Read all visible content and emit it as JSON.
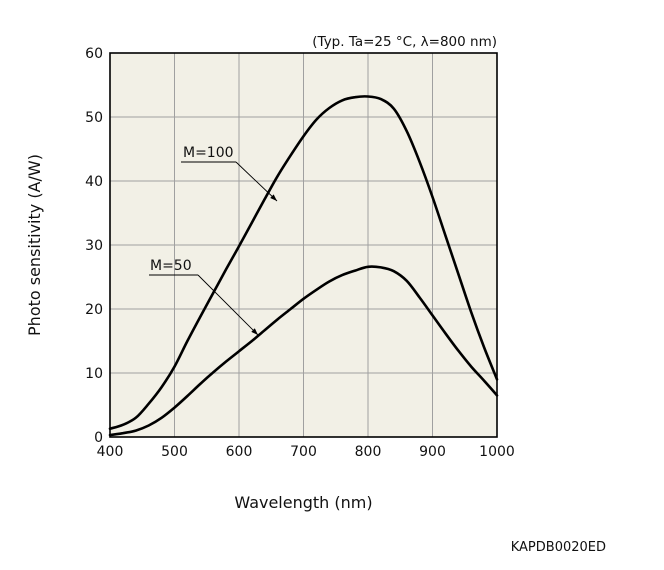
{
  "chart_data": {
    "type": "line",
    "title": "",
    "condition_note": "(Typ. Ta=25 °C, λ=800 nm)",
    "xlabel": "Wavelength (nm)",
    "ylabel": "Photo sensitivity (A/W)",
    "xlim": [
      400,
      1000
    ],
    "ylim": [
      0,
      60
    ],
    "xticks": [
      "400",
      "500",
      "600",
      "700",
      "800",
      "900",
      "1000"
    ],
    "yticks": [
      "0",
      "10",
      "20",
      "30",
      "40",
      "50",
      "60"
    ],
    "grid": true,
    "colors": {
      "plot_background": "#f2f0e6",
      "grid": "#a0a0a0",
      "line": "#000000"
    },
    "series": [
      {
        "name": "M=100",
        "x": [
          400,
          420,
          440,
          460,
          480,
          500,
          520,
          540,
          560,
          580,
          600,
          620,
          640,
          660,
          680,
          700,
          720,
          740,
          760,
          780,
          800,
          820,
          840,
          860,
          880,
          900,
          920,
          940,
          960,
          980,
          1000
        ],
        "y": [
          1.3,
          1.9,
          3.0,
          5.2,
          7.8,
          11.0,
          15.0,
          18.8,
          22.5,
          26.2,
          29.8,
          33.5,
          37.2,
          40.8,
          44.0,
          47.0,
          49.6,
          51.4,
          52.6,
          53.1,
          53.2,
          52.8,
          51.3,
          47.8,
          43.0,
          37.5,
          31.5,
          25.5,
          19.5,
          14.0,
          9.0
        ]
      },
      {
        "name": "M=50",
        "x": [
          400,
          420,
          440,
          460,
          480,
          500,
          520,
          540,
          560,
          580,
          600,
          620,
          640,
          660,
          680,
          700,
          720,
          740,
          760,
          780,
          800,
          820,
          840,
          860,
          880,
          900,
          920,
          940,
          960,
          980,
          1000
        ],
        "y": [
          0.3,
          0.6,
          1.0,
          1.8,
          3.0,
          4.6,
          6.4,
          8.3,
          10.1,
          11.8,
          13.4,
          15.0,
          16.7,
          18.4,
          20.0,
          21.6,
          23.0,
          24.3,
          25.3,
          26.0,
          26.6,
          26.5,
          25.9,
          24.4,
          21.8,
          19.0,
          16.2,
          13.5,
          11.0,
          8.8,
          6.5
        ]
      }
    ],
    "annotations": [
      "M=100",
      "M=50"
    ]
  },
  "figure_code": "KAPDB0020ED"
}
